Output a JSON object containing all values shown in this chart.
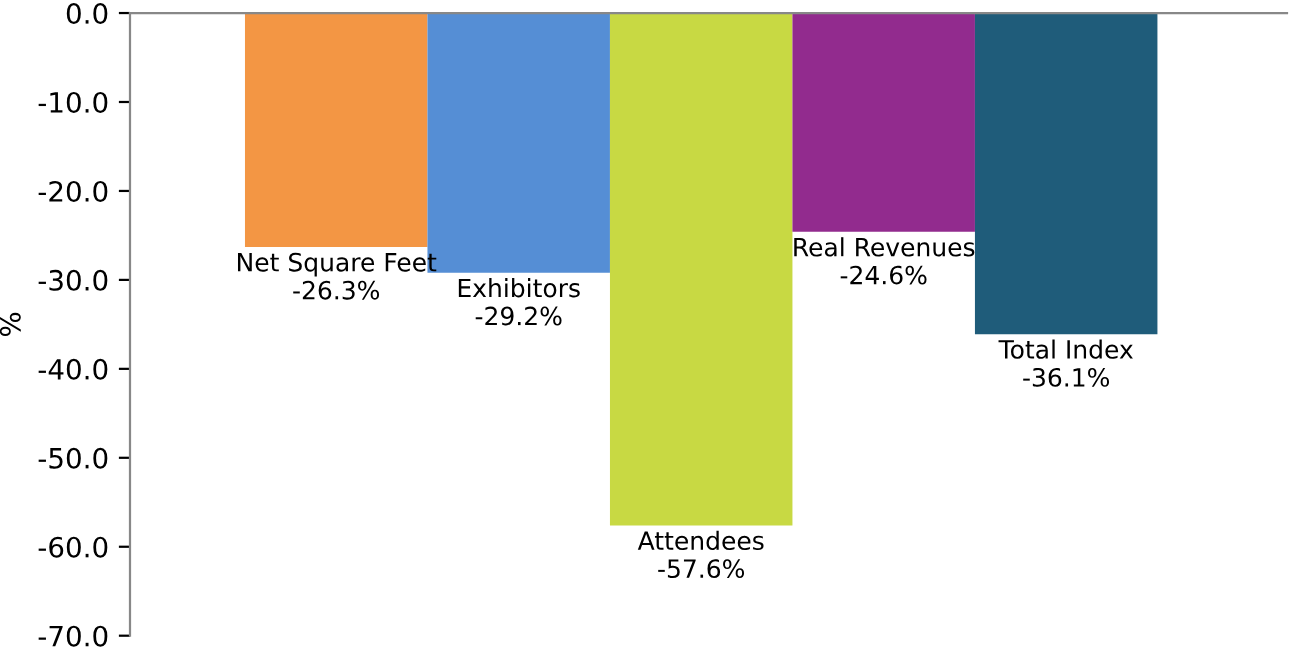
{
  "chart_data": {
    "type": "bar",
    "ylabel": "%",
    "categories": [
      "Net Square Feet",
      "Exhibitors",
      "Attendees",
      "Real Revenues",
      "Total Index"
    ],
    "values": [
      -26.3,
      -29.2,
      -57.6,
      -24.6,
      -36.1
    ],
    "colors": [
      "#f39644",
      "#558ed5",
      "#c8d943",
      "#922b8e",
      "#1f5c7a"
    ],
    "value_labels": [
      "-26.3%",
      "-29.2%",
      "-57.6%",
      "-24.6%",
      "-36.1%"
    ],
    "ylim": [
      -70,
      0
    ],
    "yticks": [
      {
        "value": 0,
        "label": "0.0"
      },
      {
        "value": -10,
        "label": "-10.0"
      },
      {
        "value": -20,
        "label": "-20.0"
      },
      {
        "value": -30,
        "label": "-30.0"
      },
      {
        "value": -40,
        "label": "-40.0"
      },
      {
        "value": -50,
        "label": "-50.0"
      },
      {
        "value": -60,
        "label": "-60.0"
      },
      {
        "value": -70,
        "label": "-70.0"
      }
    ],
    "grid": false
  }
}
